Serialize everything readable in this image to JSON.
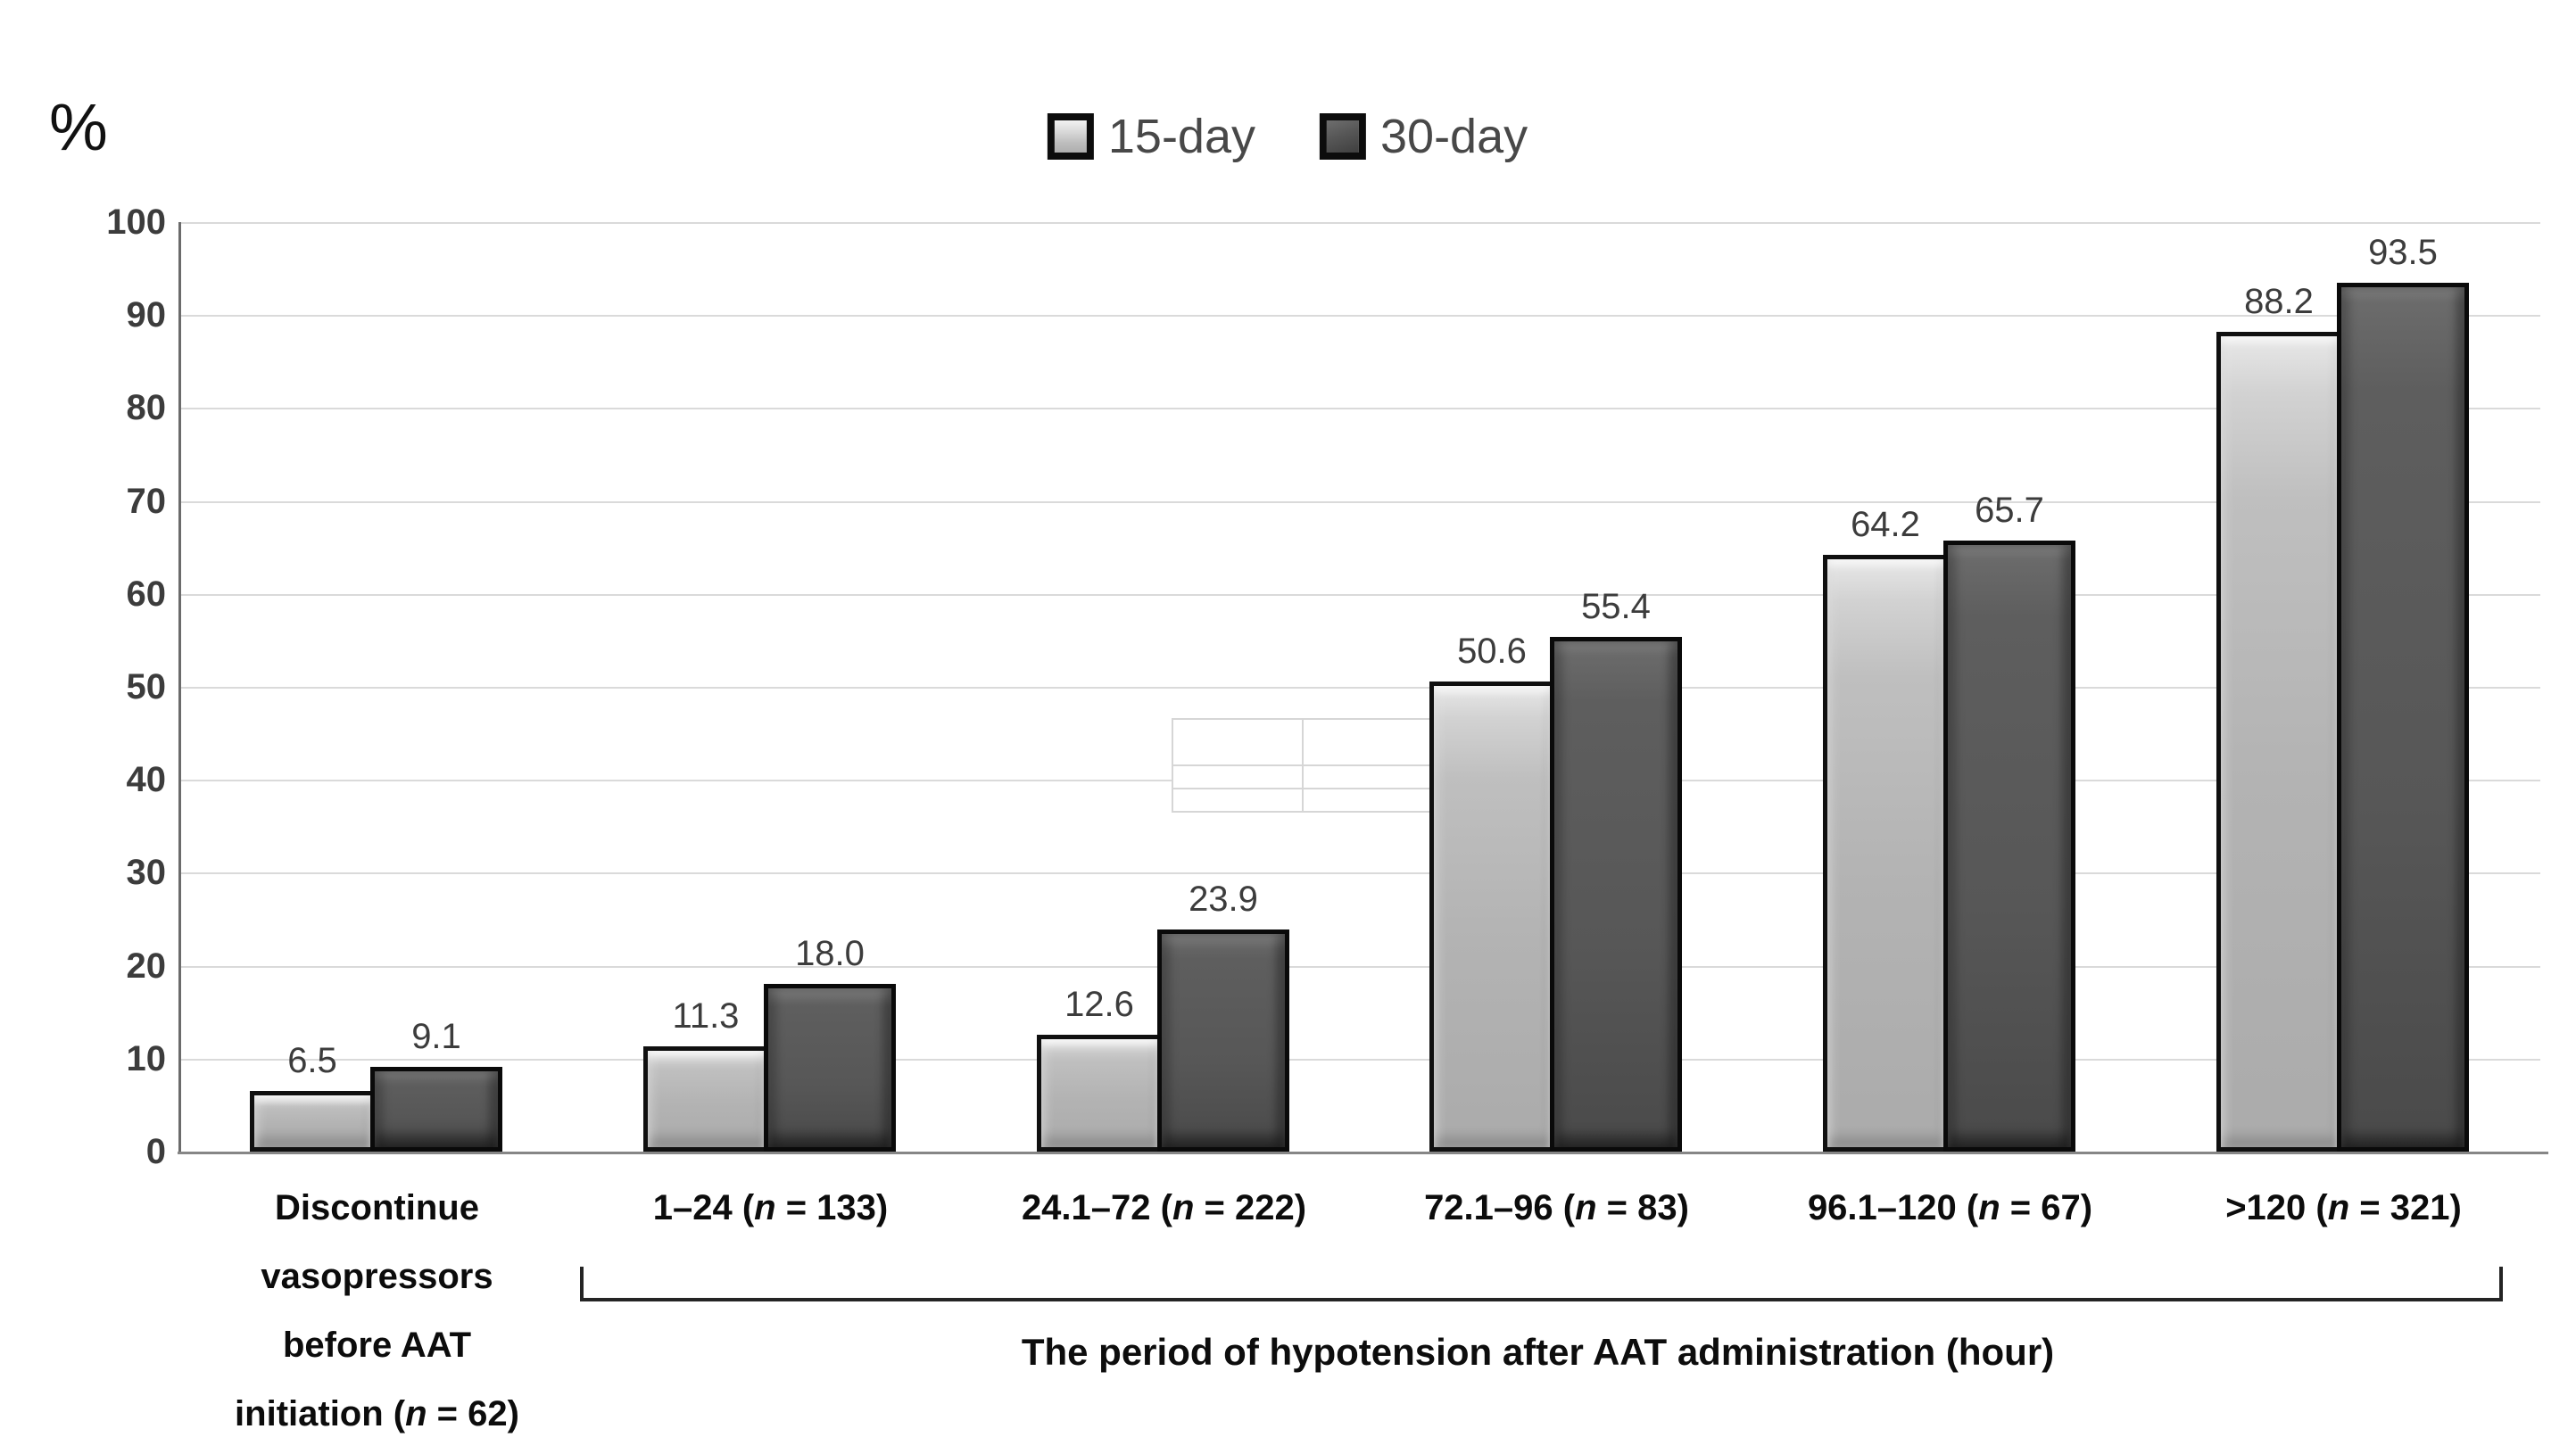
{
  "chart_data": {
    "type": "bar",
    "title": "",
    "y_unit_label": "%",
    "ylim": [
      0,
      100
    ],
    "ytick_step": 10,
    "yticks": [
      100,
      90,
      80,
      70,
      60,
      50,
      40,
      30,
      20,
      10,
      0
    ],
    "grid": true,
    "legend_position": "top-center",
    "legend": [
      {
        "name": "15-day",
        "swatch": "light-gray",
        "color": "#b3b3b3"
      },
      {
        "name": "30-day",
        "swatch": "dark-gray",
        "color": "#575757"
      }
    ],
    "categories": [
      {
        "pre_lines": [
          "Discontinue",
          "vasopressors",
          "before AAT"
        ],
        "range": "initiation",
        "n": "62"
      },
      {
        "pre_lines": [],
        "range": "1–24",
        "n": "133"
      },
      {
        "pre_lines": [],
        "range": "24.1–72",
        "n": "222"
      },
      {
        "pre_lines": [],
        "range": "72.1–96",
        "n": "83"
      },
      {
        "pre_lines": [],
        "range": "96.1–120",
        "n": "67"
      },
      {
        "pre_lines": [],
        "range": ">120",
        "n": "321"
      }
    ],
    "series": [
      {
        "name": "15-day",
        "values": [
          6.5,
          11.3,
          12.6,
          50.6,
          64.2,
          88.2
        ],
        "value_labels": [
          "6.5",
          "11.3",
          "12.6",
          "50.6",
          "64.2",
          "88.2"
        ]
      },
      {
        "name": "30-day",
        "values": [
          9.1,
          18.0,
          23.9,
          55.4,
          65.7,
          93.5
        ],
        "value_labels": [
          "9.1",
          "18.0",
          "23.9",
          "55.4",
          "65.7",
          "93.5"
        ]
      }
    ],
    "x_group_label": "The period of hypotension after AAT administration (hour)"
  },
  "colors": {
    "grid": "#dadada",
    "y_axis": "#6b6b6b",
    "x_axis": "#868686",
    "tick_text": "#3c3c3c",
    "category_text": "#0c0c0c",
    "legend_text": "#484848",
    "bar_15day": "#b3b3b3",
    "bar_30day": "#575757",
    "bar_border": "#0a0a0a",
    "background": "#ffffff"
  }
}
